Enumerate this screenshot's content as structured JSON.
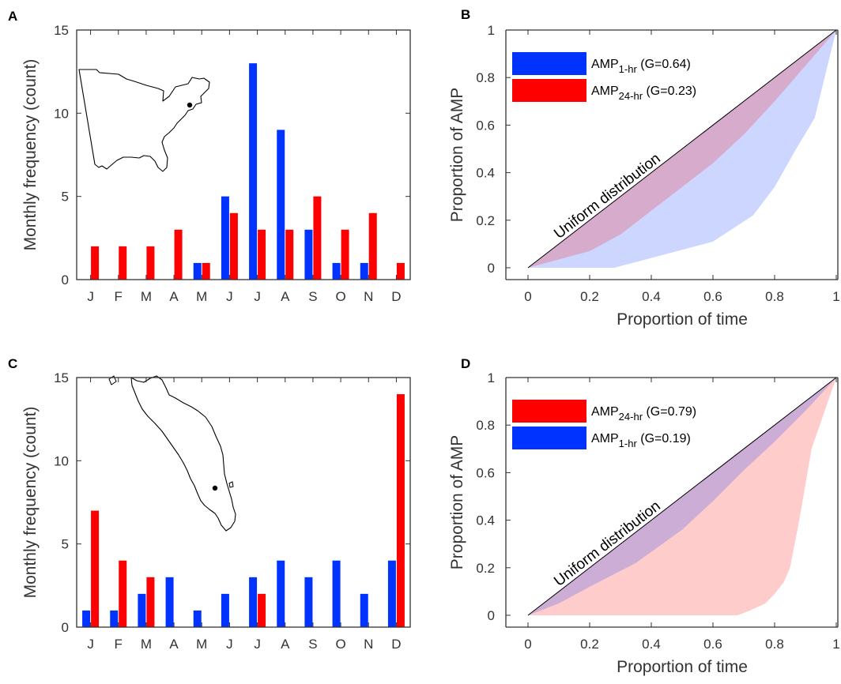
{
  "chart_data": [
    {
      "panel": "A",
      "type": "bar",
      "ylabel": "Monthly frequency (count)",
      "categories": [
        "J",
        "F",
        "M",
        "A",
        "M",
        "J",
        "J",
        "A",
        "S",
        "O",
        "N",
        "D"
      ],
      "ylim": [
        0,
        15
      ],
      "yticks": [
        0,
        5,
        10,
        15
      ],
      "series": [
        {
          "color": "#0033ff",
          "values": [
            0,
            0,
            0,
            0,
            1,
            5,
            13,
            9,
            3,
            1,
            1,
            0
          ]
        },
        {
          "color": "#ff0000",
          "values": [
            2,
            2,
            2,
            3,
            1,
            4,
            3,
            3,
            5,
            3,
            4,
            1
          ]
        }
      ],
      "inset": "map-northeast-us"
    },
    {
      "panel": "B",
      "type": "area",
      "xlabel": "Proportion of time",
      "ylabel": "Proportion of AMP",
      "xlim": [
        0,
        1
      ],
      "ylim": [
        0,
        1
      ],
      "xticks": [
        "0",
        "0.2",
        "0.4",
        "0.6",
        "0.8",
        "1"
      ],
      "yticks": [
        "0",
        "0.2",
        "0.4",
        "0.6",
        "0.8",
        "1"
      ],
      "annotation": "Uniform distribution",
      "legend": [
        {
          "base": "AMP",
          "sub": "1-hr",
          "rest": " (G=0.64)",
          "color": "#0033ff"
        },
        {
          "base": "AMP",
          "sub": "24-hr",
          "rest": " (G=0.23)",
          "color": "#ff0000"
        }
      ],
      "series": [
        {
          "color": "#0033ff",
          "x": [
            0,
            0.28,
            0.6,
            0.73,
            0.8,
            0.87,
            0.93,
            1
          ],
          "y": [
            0,
            0,
            0.11,
            0.22,
            0.34,
            0.5,
            0.63,
            1
          ]
        },
        {
          "color": "#ff0000",
          "x": [
            0,
            0.2,
            0.3,
            0.45,
            0.6,
            0.7,
            0.8,
            0.9,
            1
          ],
          "y": [
            0,
            0.07,
            0.14,
            0.29,
            0.44,
            0.56,
            0.7,
            0.85,
            1
          ]
        }
      ]
    },
    {
      "panel": "C",
      "type": "bar",
      "ylabel": "Monthly frequency (count)",
      "categories": [
        "J",
        "F",
        "M",
        "A",
        "M",
        "J",
        "J",
        "A",
        "S",
        "O",
        "N",
        "D"
      ],
      "ylim": [
        0,
        15
      ],
      "yticks": [
        0,
        5,
        10,
        15
      ],
      "series": [
        {
          "color": "#0033ff",
          "values": [
            1,
            1,
            2,
            3,
            1,
            2,
            3,
            4,
            3,
            4,
            2,
            4
          ]
        },
        {
          "color": "#ff0000",
          "values": [
            7,
            4,
            3,
            0,
            0,
            0,
            2,
            0,
            0,
            0,
            0,
            14
          ]
        }
      ],
      "inset": "map-malay-peninsula"
    },
    {
      "panel": "D",
      "type": "area",
      "xlabel": "Proportion of time",
      "ylabel": "Proportion of AMP",
      "xlim": [
        0,
        1
      ],
      "ylim": [
        0,
        1
      ],
      "xticks": [
        "0",
        "0.2",
        "0.4",
        "0.6",
        "0.8",
        "1"
      ],
      "yticks": [
        "0",
        "0.2",
        "0.4",
        "0.6",
        "0.8",
        "1"
      ],
      "annotation": "Uniform distribution",
      "legend": [
        {
          "base": "AMP",
          "sub": "24-hr",
          "rest": " (G=0.79)",
          "color": "#ff0000"
        },
        {
          "base": "AMP",
          "sub": "1-hr",
          "rest": " (G=0.19)",
          "color": "#0033ff"
        }
      ],
      "series": [
        {
          "color": "#ff0000",
          "x": [
            0,
            0.68,
            0.72,
            0.77,
            0.8,
            0.83,
            0.85,
            0.88,
            0.92,
            1
          ],
          "y": [
            0,
            0,
            0.02,
            0.05,
            0.09,
            0.14,
            0.2,
            0.4,
            0.7,
            1
          ]
        },
        {
          "color": "#0033ff",
          "x": [
            0,
            0.1,
            0.2,
            0.35,
            0.5,
            0.6,
            0.7,
            0.8,
            0.9,
            1
          ],
          "y": [
            0,
            0.05,
            0.12,
            0.22,
            0.36,
            0.48,
            0.61,
            0.73,
            0.86,
            1
          ]
        }
      ]
    }
  ]
}
